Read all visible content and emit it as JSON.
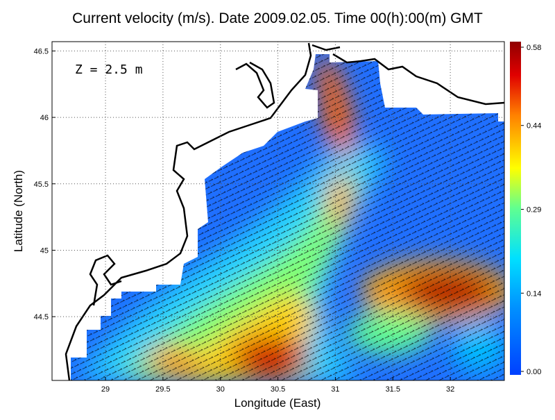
{
  "chart_data": {
    "type": "map",
    "title": "Current velocity (m/s). Date 2009.02.05. Time 00(h):00(m) GMT",
    "annotation": "Z = 2.5 m",
    "x_label": "Longitude (East)",
    "y_label": "Latitude (North)",
    "xlim": [
      28.535,
      32.47
    ],
    "ylim": [
      44.02,
      46.57
    ],
    "xticks": [
      29,
      29.5,
      30,
      30.5,
      31,
      31.5,
      32
    ],
    "yticks": [
      44.5,
      45,
      45.5,
      46,
      46.5
    ],
    "grid": true,
    "colorbar": {
      "lim": [
        0,
        0.58
      ],
      "ticks": [
        {
          "value": 0,
          "label": "0.00"
        },
        0.14,
        0.29,
        0.44,
        0.58
      ]
    }
  }
}
